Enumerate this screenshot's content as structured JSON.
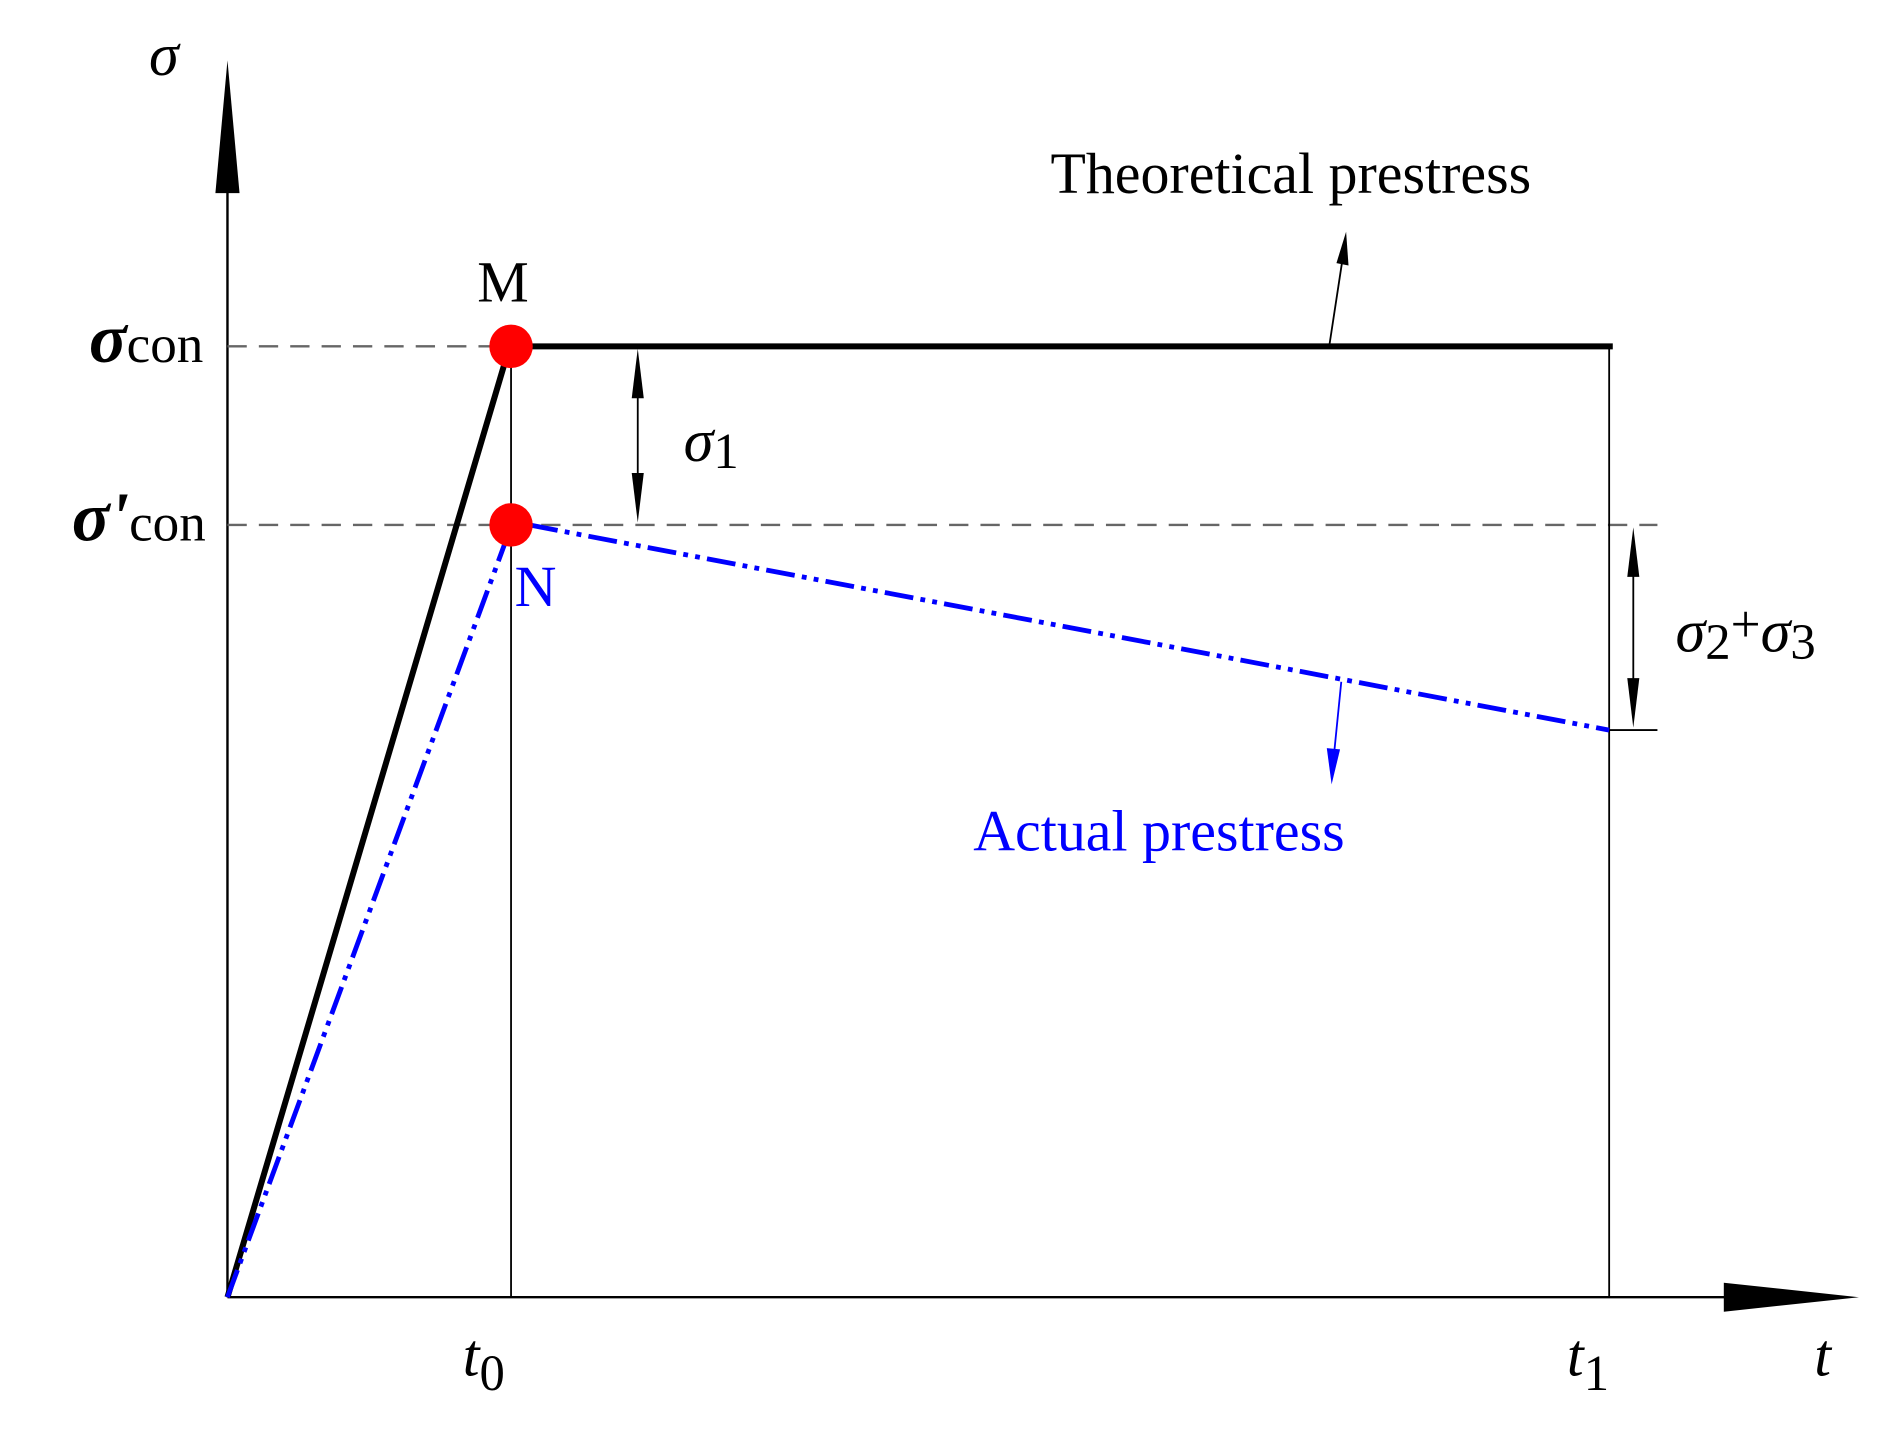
{
  "y_axis_label": "σ",
  "x_axis_label": "t",
  "y_levels": [
    {
      "symbol": "σ",
      "subscript": "con"
    },
    {
      "symbol": "σ'",
      "subscript": "con"
    }
  ],
  "x_marks": [
    {
      "symbol": "t",
      "subscript": "0"
    },
    {
      "symbol": "t",
      "subscript": "1"
    }
  ],
  "points": [
    {
      "label": "M"
    },
    {
      "label": "N"
    }
  ],
  "losses": [
    [
      "σ",
      "1"
    ],
    [
      "σ",
      "2",
      "+",
      "σ",
      "3"
    ]
  ],
  "annotations": {
    "theoretical": "Theoretical prestress",
    "actual": "Actual prestress"
  }
}
